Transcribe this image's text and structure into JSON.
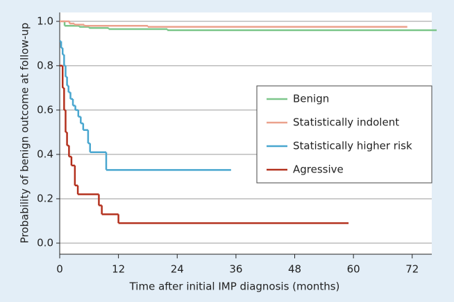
{
  "chart_data": {
    "type": "step",
    "x_label": "Time after initial IMP diagnosis (months)",
    "y_label": "Probability of benign outcome at follow-up",
    "xlim": [
      0,
      76
    ],
    "ylim": [
      -0.05,
      1.04
    ],
    "xticks": [
      0,
      12,
      24,
      36,
      48,
      60,
      72
    ],
    "yticks": [
      {
        "value": 0,
        "label": "0.0"
      },
      0.2,
      0.4,
      0.6,
      0.8,
      {
        "value": 1,
        "label": "1.0"
      }
    ],
    "grid": true,
    "legend": "right",
    "series": [
      {
        "name": "Benign",
        "color": "#7cc68a",
        "x": [
          0,
          1,
          4,
          6,
          10,
          22,
          77
        ],
        "values": [
          1.0,
          0.98,
          0.975,
          0.97,
          0.965,
          0.96,
          0.96
        ]
      },
      {
        "name": "Statistically indolent",
        "color": "#eba18c",
        "x": [
          0,
          2,
          3,
          5,
          18,
          71
        ],
        "values": [
          1.0,
          0.99,
          0.985,
          0.98,
          0.975,
          0.975
        ]
      },
      {
        "name": "Statistically higher risk",
        "color": "#48a6cf",
        "x": [
          0,
          0.3,
          0.6,
          0.9,
          1.2,
          1.5,
          1.8,
          2.2,
          2.7,
          3.2,
          3.8,
          4.3,
          4.8,
          5.8,
          6.2,
          9.5,
          35
        ],
        "values": [
          0.91,
          0.88,
          0.85,
          0.8,
          0.75,
          0.71,
          0.68,
          0.65,
          0.62,
          0.6,
          0.57,
          0.54,
          0.51,
          0.45,
          0.41,
          0.33,
          0.33
        ]
      },
      {
        "name": "Agressive",
        "color": "#b3301d",
        "x": [
          0,
          0.6,
          0.9,
          1.2,
          1.5,
          1.9,
          2.4,
          3.1,
          3.7,
          8,
          8.6,
          12,
          59
        ],
        "values": [
          0.8,
          0.7,
          0.6,
          0.5,
          0.44,
          0.39,
          0.35,
          0.26,
          0.22,
          0.17,
          0.13,
          0.09,
          0.09
        ]
      }
    ]
  }
}
